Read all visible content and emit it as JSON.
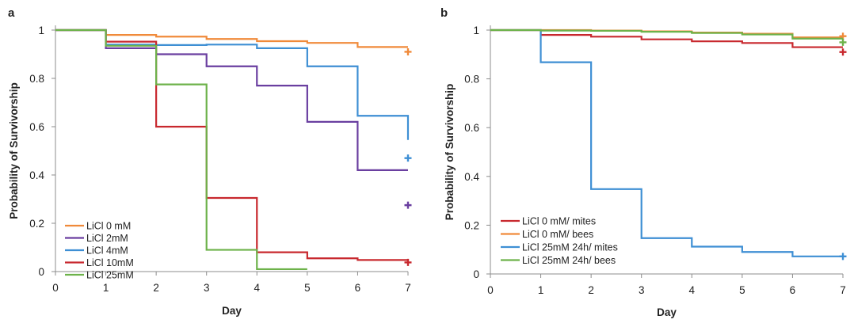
{
  "chart_data": [
    {
      "panel": "a",
      "type": "line",
      "xlabel": "Day",
      "ylabel": "Probability of Survivorship",
      "xlim": [
        0,
        7
      ],
      "ylim": [
        0,
        1
      ],
      "xticks": [
        "0",
        "1",
        "2",
        "3",
        "4",
        "5",
        "6",
        "7"
      ],
      "yticks": [
        "0",
        "0.2",
        "0.4",
        "0.6",
        "0.8",
        "1"
      ],
      "legend_position": "bottom-left",
      "grid": false,
      "step": true,
      "series": [
        {
          "name": "LiCl 0 mM",
          "color": "#F08A3A",
          "x": [
            0,
            1,
            2,
            3,
            4,
            5,
            6,
            7
          ],
          "y": [
            1,
            0.98,
            0.973,
            0.963,
            0.954,
            0.947,
            0.93,
            0.93
          ],
          "censor": [
            7,
            0.91
          ]
        },
        {
          "name": "LiCl 2mM",
          "color": "#6A3FA0",
          "x": [
            0,
            1,
            2,
            3,
            4,
            5,
            6,
            7
          ],
          "y": [
            1,
            0.925,
            0.9,
            0.85,
            0.77,
            0.62,
            0.42,
            0.42
          ],
          "censor": [
            7,
            0.275
          ]
        },
        {
          "name": "LiCl 4mM",
          "color": "#3E8FD4",
          "x": [
            0,
            1,
            2,
            3,
            4,
            5,
            6,
            7
          ],
          "y": [
            1,
            0.94,
            0.938,
            0.94,
            0.925,
            0.85,
            0.645,
            0.545
          ],
          "censor": [
            7,
            0.47
          ]
        },
        {
          "name": "LiCl 10mM",
          "color": "#C8282E",
          "x": [
            0,
            1,
            2,
            3,
            4,
            5,
            6,
            7
          ],
          "y": [
            1,
            0.952,
            0.6,
            0.305,
            0.08,
            0.055,
            0.048,
            0.045
          ],
          "censor": [
            7,
            0.038
          ]
        },
        {
          "name": "LiCl 25mM",
          "color": "#6DB24A",
          "x": [
            0,
            1,
            2,
            3,
            4,
            5
          ],
          "y": [
            1,
            0.935,
            0.775,
            0.09,
            0.01,
            0.01
          ],
          "censor": null
        }
      ]
    },
    {
      "panel": "b",
      "type": "line",
      "xlabel": "Day",
      "ylabel": "Probability of Survivorship",
      "xlim": [
        0,
        7
      ],
      "ylim": [
        0,
        1
      ],
      "xticks": [
        "0",
        "1",
        "2",
        "3",
        "4",
        "5",
        "6",
        "7"
      ],
      "yticks": [
        "0",
        "0.2",
        "0.4",
        "0.6",
        "0.8",
        "1"
      ],
      "legend_position": "bottom-left",
      "grid": false,
      "step": true,
      "series": [
        {
          "name": "LiCl 0 mM/ mites",
          "color": "#C8282E",
          "x": [
            0,
            1,
            2,
            3,
            4,
            5,
            6,
            7
          ],
          "y": [
            1,
            0.98,
            0.973,
            0.962,
            0.954,
            0.947,
            0.93,
            0.93
          ],
          "censor": [
            7,
            0.91
          ]
        },
        {
          "name": "LiCl 0 mM/ bees",
          "color": "#F08A3A",
          "x": [
            0,
            1,
            2,
            3,
            4,
            5,
            6,
            7
          ],
          "y": [
            1,
            1,
            0.998,
            0.995,
            0.99,
            0.985,
            0.97,
            0.97
          ],
          "censor": [
            7,
            0.975
          ]
        },
        {
          "name": "LiCl 25mM 24h/ mites",
          "color": "#3E8FD4",
          "x": [
            0,
            1,
            2,
            3,
            4,
            5,
            6,
            7
          ],
          "y": [
            1,
            0.868,
            0.348,
            0.147,
            0.112,
            0.09,
            0.072,
            0.072
          ],
          "censor": [
            7,
            0.072
          ]
        },
        {
          "name": "LiCl 25mM 24h/ bees",
          "color": "#6DB24A",
          "x": [
            0,
            1,
            2,
            3,
            4,
            5,
            6,
            7
          ],
          "y": [
            1,
            0.998,
            0.997,
            0.993,
            0.988,
            0.982,
            0.965,
            0.965
          ],
          "censor": [
            7,
            0.95
          ]
        }
      ]
    }
  ]
}
